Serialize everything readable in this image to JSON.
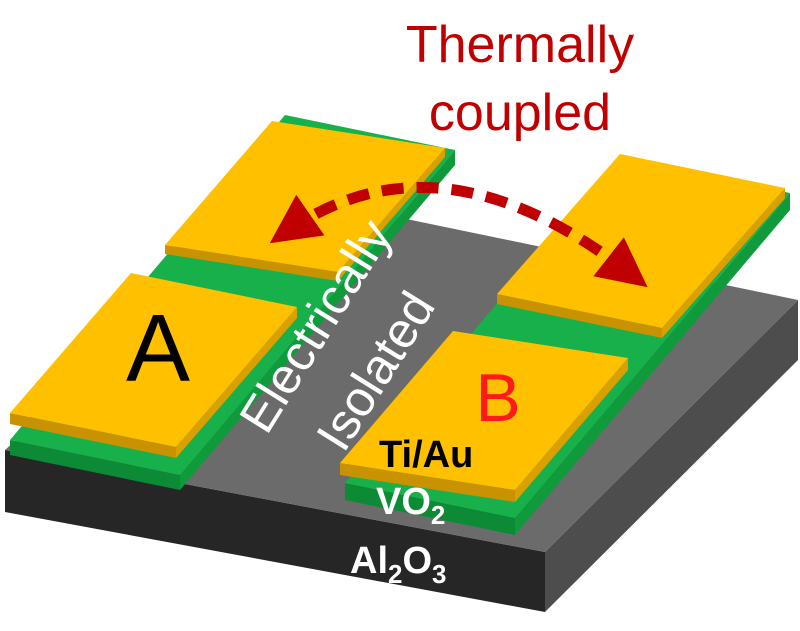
{
  "title_line1": "Thermally",
  "title_line2": "coupled",
  "pad_a_label": "A",
  "pad_b_label": "B",
  "isolation_line1": "Electrically",
  "isolation_line2": "Isolated",
  "layer_metal": "Ti/Au",
  "layer_vo2_base": "VO",
  "layer_vo2_sub": "2",
  "layer_substrate_al": "Al",
  "layer_substrate_sub1": "2",
  "layer_substrate_o": "O",
  "layer_substrate_sub2": "3",
  "colors": {
    "title": "#c00000",
    "gold": "#ffc000",
    "gold_side": "#c89200",
    "vo2": "#18b04a",
    "vo2_side": "#0c8a36",
    "substrate_top": "#6b6b6b",
    "substrate_front": "#262626",
    "substrate_side": "#4d4d4d",
    "arrow": "#c00000",
    "label_b": "#ff1a1a"
  }
}
